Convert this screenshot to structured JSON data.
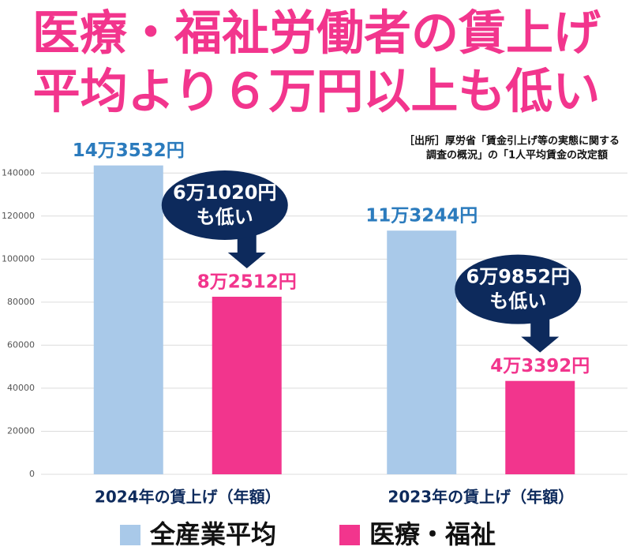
{
  "chart_data": {
    "type": "bar",
    "title": [
      "医療・福祉労働者の賃上げ",
      "平均より６万円以上も低い"
    ],
    "source_note": [
      "［出所］厚労省「賃金引上げ等の実態に関する",
      "調査の概況」の「1人平均賃金の改定額"
    ],
    "categories": [
      "2024年の賃上げ（年額）",
      "2023年の賃上げ（年額）"
    ],
    "series": [
      {
        "name": "全産業平均",
        "color": "#a9c9e9",
        "values": [
          143532,
          113244
        ],
        "value_labels": [
          "14万3532円",
          "11万3244円"
        ],
        "label_color": "#2b7bbd"
      },
      {
        "name": "医療・福祉",
        "color": "#f2358d",
        "values": [
          82512,
          43392
        ],
        "value_labels": [
          "8万2512円",
          "4万3392円"
        ],
        "label_color": "#f2358d"
      }
    ],
    "annotations": [
      {
        "lines": [
          "6万1020円",
          "も低い"
        ],
        "color": "#0d2a5c"
      },
      {
        "lines": [
          "6万9852円",
          "も低い"
        ],
        "color": "#0d2a5c"
      }
    ],
    "ylim": [
      0,
      150000
    ],
    "yticks": [
      0,
      20000,
      40000,
      60000,
      80000,
      100000,
      120000,
      140000
    ],
    "grid": true
  }
}
